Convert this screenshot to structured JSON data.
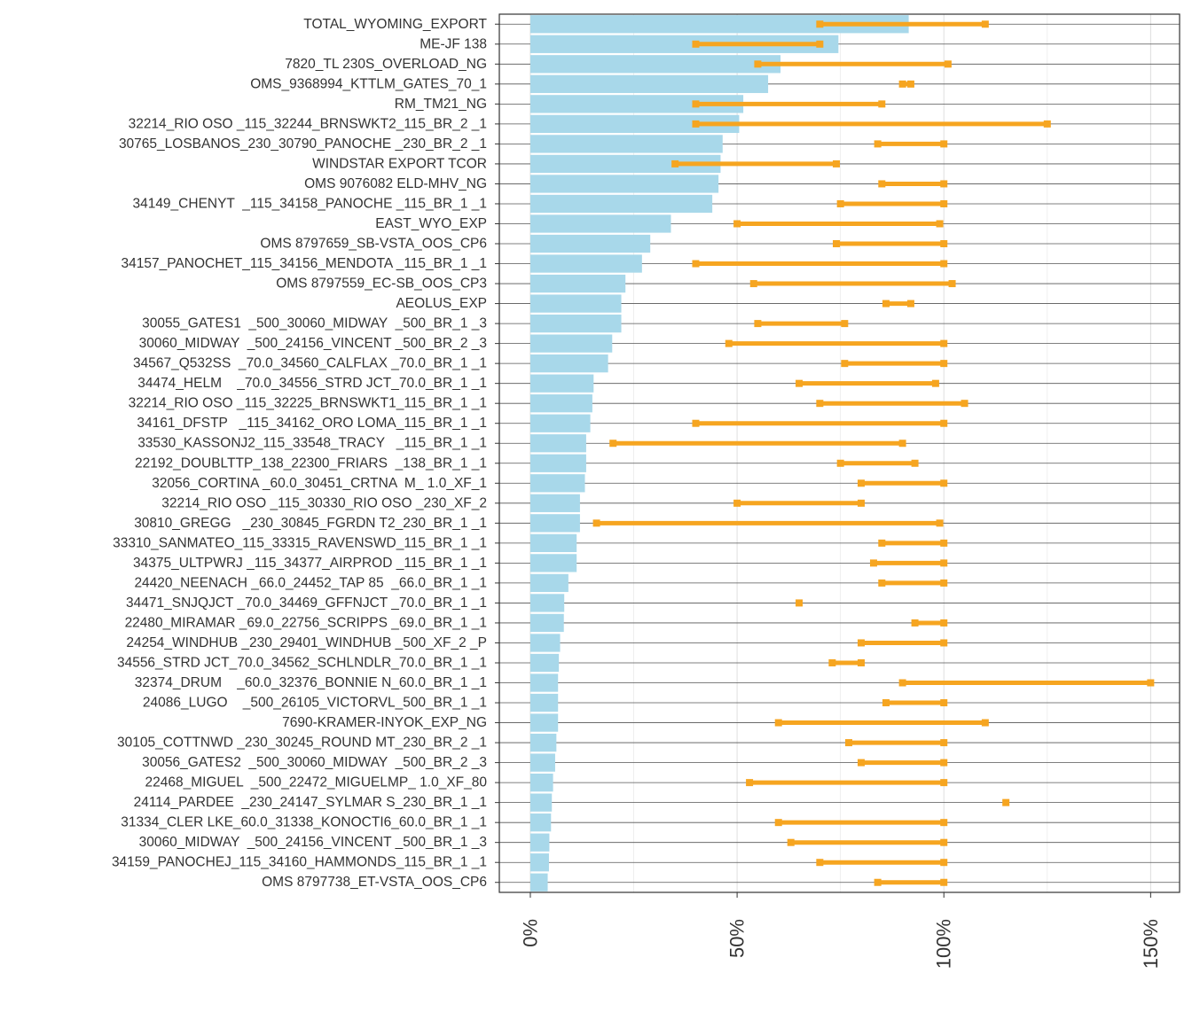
{
  "chart_data": {
    "type": "bar",
    "orientation": "horizontal",
    "categories": [
      "TOTAL_WYOMING_EXPORT",
      "ME-JF 138",
      "7820_TL 230S_OVERLOAD_NG",
      "OMS_9368994_KTTLM_GATES_70_1",
      "RM_TM21_NG",
      "32214_RIO OSO _115_32244_BRNSWKT2_115_BR_2 _1",
      "30765_LOSBANOS_230_30790_PANOCHE _230_BR_2 _1",
      "WINDSTAR EXPORT TCOR",
      "OMS 9076082 ELD-MHV_NG",
      "34149_CHENYT  _115_34158_PANOCHE _115_BR_1 _1",
      "EAST_WYO_EXP",
      "OMS 8797659_SB-VSTA_OOS_CP6",
      "34157_PANOCHET_115_34156_MENDOTA _115_BR_1 _1",
      "OMS 8797559_EC-SB_OOS_CP3",
      "AEOLUS_EXP",
      "30055_GATES1  _500_30060_MIDWAY  _500_BR_1 _3",
      "30060_MIDWAY  _500_24156_VINCENT _500_BR_2 _3",
      "34567_Q532SS  _70.0_34560_CALFLAX _70.0_BR_1 _1",
      "34474_HELM    _70.0_34556_STRD JCT_70.0_BR_1 _1",
      "32214_RIO OSO _115_32225_BRNSWKT1_115_BR_1 _1",
      "34161_DFSTP   _115_34162_ORO LOMA_115_BR_1 _1",
      "33530_KASSONJ2_115_33548_TRACY   _115_BR_1 _1",
      "22192_DOUBLTTP_138_22300_FRIARS  _138_BR_1 _1",
      "32056_CORTINA _60.0_30451_CRTNA  M_ 1.0_XF_1",
      "32214_RIO OSO _115_30330_RIO OSO _230_XF_2",
      "30810_GREGG   _230_30845_FGRDN T2_230_BR_1 _1",
      "33310_SANMATEO_115_33315_RAVENSWD_115_BR_1 _1",
      "34375_ULTPWRJ _115_34377_AIRPROD _115_BR_1 _1",
      "24420_NEENACH _66.0_24452_TAP 85  _66.0_BR_1 _1",
      "34471_SNJQJCT _70.0_34469_GFFNJCT _70.0_BR_1 _1",
      "22480_MIRAMAR _69.0_22756_SCRIPPS _69.0_BR_1 _1",
      "24254_WINDHUB _230_29401_WINDHUB _500_XF_2 _P",
      "34556_STRD JCT_70.0_34562_SCHLNDLR_70.0_BR_1 _1",
      "32374_DRUM    _60.0_32376_BONNIE N_60.0_BR_1 _1",
      "24086_LUGO    _500_26105_VICTORVL_500_BR_1 _1",
      "7690-KRAMER-INYOK_EXP_NG",
      "30105_COTTNWD _230_30245_ROUND MT_230_BR_2 _1",
      "30056_GATES2  _500_30060_MIDWAY  _500_BR_2 _3",
      "22468_MIGUEL  _500_22472_MIGUELMP_ 1.0_XF_80",
      "24114_PARDEE  _230_24147_SYLMAR S_230_BR_1 _1",
      "31334_CLER LKE_60.0_31338_KONOCTI6_60.0_BR_1 _1",
      "30060_MIDWAY  _500_24156_VINCENT _500_BR_1 _3",
      "34159_PANOCHEJ_115_34160_HAMMONDS_115_BR_1 _1",
      "OMS 8797738_ET-VSTA_OOS_CP6"
    ],
    "series": [
      {
        "kind": "bar",
        "color": "#a8d8ea",
        "values": [
          91.5,
          74.5,
          60.5,
          57.5,
          51.5,
          50.5,
          46.5,
          46,
          45.5,
          44,
          34,
          29,
          27,
          23,
          22,
          22,
          19.8,
          18.8,
          15.3,
          15,
          14.5,
          13.5,
          13.5,
          13.2,
          12,
          12,
          11.2,
          11.2,
          9.2,
          8.2,
          8.1,
          7.2,
          6.9,
          6.7,
          6.7,
          6.7,
          6.3,
          6.0,
          5.5,
          5.2,
          5.0,
          4.6,
          4.5,
          4.2
        ]
      },
      {
        "kind": "range",
        "color": "#f6a520",
        "low": [
          70,
          40,
          55,
          90,
          40,
          40,
          84,
          35,
          85,
          75,
          50,
          74,
          40,
          54,
          86,
          55,
          48,
          76,
          65,
          70,
          40,
          20,
          75,
          80,
          50,
          16,
          85,
          83,
          85,
          65,
          93,
          80,
          73,
          90,
          86,
          60,
          77,
          80,
          53,
          115,
          60,
          63,
          70,
          84
        ],
        "high": [
          110,
          70,
          101,
          92,
          85,
          125,
          100,
          74,
          100,
          100,
          99,
          100,
          100,
          102,
          92,
          76,
          100,
          100,
          98,
          105,
          100,
          90,
          93,
          100,
          80,
          99,
          100,
          100,
          100,
          65,
          100,
          100,
          80,
          150,
          100,
          110,
          100,
          100,
          100,
          115,
          100,
          100,
          100,
          100
        ]
      }
    ],
    "xlim": [
      -7.5,
      157
    ],
    "x_ticks": [
      0,
      50,
      100,
      150
    ],
    "x_tick_labels": [
      "0%",
      "50%",
      "100%",
      "150%"
    ],
    "xlabel": "",
    "ylabel": "",
    "title": "",
    "grid": true,
    "legend": "none"
  }
}
